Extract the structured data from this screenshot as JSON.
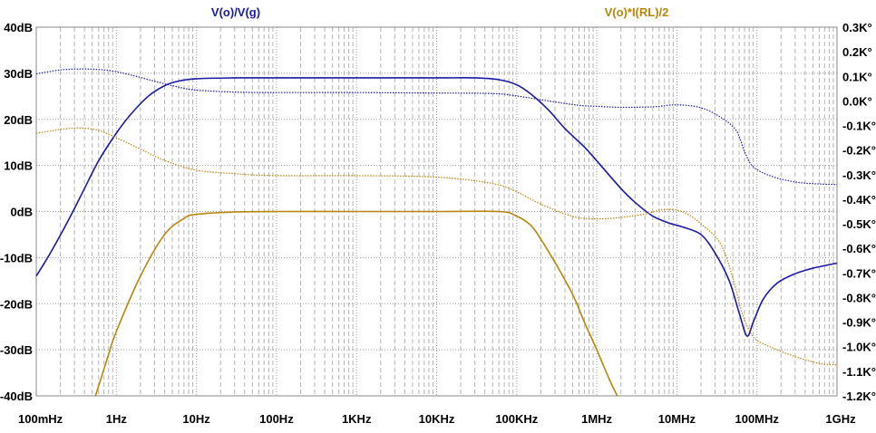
{
  "chart_data": {
    "type": "line",
    "x_scale": "log",
    "x_ticks": [
      {
        "label": "100mHz",
        "hz": 0.1
      },
      {
        "label": "1Hz",
        "hz": 1
      },
      {
        "label": "10Hz",
        "hz": 10
      },
      {
        "label": "100Hz",
        "hz": 100
      },
      {
        "label": "1KHz",
        "hz": 1000
      },
      {
        "label": "10KHz",
        "hz": 10000
      },
      {
        "label": "100KHz",
        "hz": 100000
      },
      {
        "label": "1MHz",
        "hz": 1000000
      },
      {
        "label": "10MHz",
        "hz": 10000000
      },
      {
        "label": "100MHz",
        "hz": 100000000
      },
      {
        "label": "1GHz",
        "hz": 1000000000
      }
    ],
    "xlim_hz": [
      0.1,
      1000000000
    ],
    "y_left": {
      "unit": "dB",
      "range": [
        -40,
        40
      ],
      "ticks": [
        {
          "label": "40dB",
          "v": 40
        },
        {
          "label": "30dB",
          "v": 30
        },
        {
          "label": "20dB",
          "v": 20
        },
        {
          "label": "10dB",
          "v": 10
        },
        {
          "label": "0dB",
          "v": 0
        },
        {
          "label": "-10dB",
          "v": -10
        },
        {
          "label": "-20dB",
          "v": -20
        },
        {
          "label": "-30dB",
          "v": -30
        },
        {
          "label": "-40dB",
          "v": -40
        }
      ]
    },
    "y_right": {
      "unit": "K°",
      "range": [
        -1.2,
        0.3
      ],
      "ticks": [
        {
          "label": "0.3K°",
          "v": 0.3
        },
        {
          "label": "0.2K°",
          "v": 0.2
        },
        {
          "label": "0.1K°",
          "v": 0.1
        },
        {
          "label": "0.0K°",
          "v": 0.0
        },
        {
          "label": "-0.1K°",
          "v": -0.1
        },
        {
          "label": "-0.2K°",
          "v": -0.2
        },
        {
          "label": "-0.3K°",
          "v": -0.3
        },
        {
          "label": "-0.4K°",
          "v": -0.4
        },
        {
          "label": "-0.5K°",
          "v": -0.5
        },
        {
          "label": "-0.6K°",
          "v": -0.6
        },
        {
          "label": "-0.7K°",
          "v": -0.7
        },
        {
          "label": "-0.8K°",
          "v": -0.8
        },
        {
          "label": "-0.9K°",
          "v": -0.9
        },
        {
          "label": "-1.0K°",
          "v": -1.0
        },
        {
          "label": "-1.1K°",
          "v": -1.1
        },
        {
          "label": "-1.2K°",
          "v": -1.2
        }
      ]
    },
    "grid": true,
    "legend_position": "top",
    "series": [
      {
        "name": "V(o)/V(g)",
        "color": "#1a1aa8",
        "quantity": "magnitude_dB",
        "points": [
          [
            0.1,
            -14
          ],
          [
            0.15,
            -9
          ],
          [
            0.25,
            -2
          ],
          [
            0.4,
            5
          ],
          [
            0.6,
            11
          ],
          [
            1,
            17
          ],
          [
            1.5,
            21
          ],
          [
            2.5,
            25
          ],
          [
            4,
            27.3
          ],
          [
            6,
            28.3
          ],
          [
            10,
            28.8
          ],
          [
            30,
            29
          ],
          [
            100,
            29
          ],
          [
            1000,
            29
          ],
          [
            10000,
            29
          ],
          [
            30000,
            29
          ],
          [
            60000,
            28.6
          ],
          [
            100000,
            27.5
          ],
          [
            150000,
            25.5
          ],
          [
            250000,
            22
          ],
          [
            400000,
            18
          ],
          [
            700000,
            14
          ],
          [
            1000000,
            11
          ],
          [
            2000000,
            5
          ],
          [
            3000000,
            2
          ],
          [
            5000000,
            -1
          ],
          [
            8000000,
            -2.5
          ],
          [
            12000000,
            -3.4
          ],
          [
            20000000,
            -5
          ],
          [
            30000000,
            -9
          ],
          [
            45000000,
            -15
          ],
          [
            60000000,
            -22
          ],
          [
            75000000,
            -27
          ],
          [
            90000000,
            -24
          ],
          [
            120000000,
            -19
          ],
          [
            180000000,
            -15.5
          ],
          [
            300000000,
            -13.5
          ],
          [
            500000000,
            -12.3
          ],
          [
            1000000000,
            -11.2
          ]
        ]
      },
      {
        "name": "V(o)/V(g)",
        "color": "#1a1aa8",
        "quantity": "phase_K°",
        "dashed": true,
        "points": [
          [
            0.1,
            0.11
          ],
          [
            0.2,
            0.126
          ],
          [
            0.4,
            0.13
          ],
          [
            0.8,
            0.124
          ],
          [
            1.5,
            0.106
          ],
          [
            3,
            0.08
          ],
          [
            6,
            0.056
          ],
          [
            10,
            0.044
          ],
          [
            30,
            0.036
          ],
          [
            100,
            0.034
          ],
          [
            1000,
            0.034
          ],
          [
            10000,
            0.032
          ],
          [
            50000,
            0.03
          ],
          [
            100000,
            0.02
          ],
          [
            300000,
            -0.004
          ],
          [
            600000,
            -0.018
          ],
          [
            1000000,
            -0.022
          ],
          [
            2000000,
            -0.026
          ],
          [
            5000000,
            -0.024
          ],
          [
            10000000,
            -0.016
          ],
          [
            20000000,
            -0.028
          ],
          [
            35000000,
            -0.066
          ],
          [
            55000000,
            -0.12
          ],
          [
            70000000,
            -0.206
          ],
          [
            90000000,
            -0.268
          ],
          [
            150000000,
            -0.306
          ],
          [
            300000000,
            -0.33
          ],
          [
            600000000,
            -0.338
          ],
          [
            1000000000,
            -0.34
          ]
        ]
      },
      {
        "name": "V(o)*I(RL)/2",
        "color": "#b8860b",
        "quantity": "magnitude_dB",
        "points": [
          [
            0.55,
            -40
          ],
          [
            0.8,
            -31
          ],
          [
            1,
            -26
          ],
          [
            2,
            -14
          ],
          [
            4,
            -5
          ],
          [
            7,
            -1.5
          ],
          [
            10,
            -0.6
          ],
          [
            30,
            -0.1
          ],
          [
            100,
            0
          ],
          [
            1000,
            0
          ],
          [
            10000,
            0
          ],
          [
            60000,
            0
          ],
          [
            100000,
            -1
          ],
          [
            150000,
            -3
          ],
          [
            200000,
            -6
          ],
          [
            300000,
            -11
          ],
          [
            500000,
            -18
          ],
          [
            700000,
            -24
          ],
          [
            1000000,
            -30
          ],
          [
            1400000,
            -36
          ],
          [
            1800000,
            -40
          ]
        ]
      },
      {
        "name": "V(o)*I(RL)/2",
        "color": "#b8860b",
        "quantity": "phase_K°",
        "dashed": true,
        "points": [
          [
            0.1,
            -0.132
          ],
          [
            0.2,
            -0.116
          ],
          [
            0.35,
            -0.11
          ],
          [
            0.6,
            -0.12
          ],
          [
            1,
            -0.15
          ],
          [
            2,
            -0.196
          ],
          [
            4,
            -0.242
          ],
          [
            10,
            -0.282
          ],
          [
            30,
            -0.296
          ],
          [
            100,
            -0.304
          ],
          [
            1000,
            -0.304
          ],
          [
            10000,
            -0.31
          ],
          [
            50000,
            -0.336
          ],
          [
            100000,
            -0.37
          ],
          [
            200000,
            -0.42
          ],
          [
            500000,
            -0.47
          ],
          [
            1000000,
            -0.48
          ],
          [
            2000000,
            -0.474
          ],
          [
            4000000,
            -0.46
          ],
          [
            7000000,
            -0.442
          ],
          [
            12000000,
            -0.452
          ],
          [
            20000000,
            -0.5
          ],
          [
            35000000,
            -0.58
          ],
          [
            50000000,
            -0.72
          ],
          [
            65000000,
            -0.86
          ],
          [
            90000000,
            -0.96
          ],
          [
            150000000,
            -1.002
          ],
          [
            300000000,
            -1.04
          ],
          [
            600000000,
            -1.068
          ],
          [
            1000000000,
            -1.074
          ]
        ]
      }
    ]
  }
}
